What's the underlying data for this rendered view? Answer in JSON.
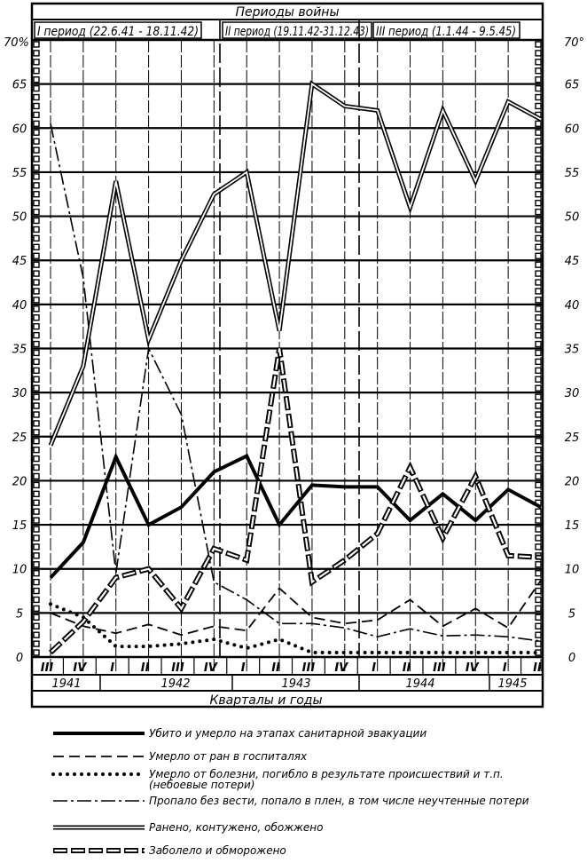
{
  "chart_data": {
    "type": "line",
    "title": "Периоды войны",
    "periods": [
      "I период (22.6.41 - 18.11.42)",
      "II период (19.11.42-31.12.43)",
      "III период (1.1.44 - 9.5.45)"
    ],
    "xlabel": "Кварталы и годы",
    "categories": [
      "III",
      "IV",
      "I",
      "II",
      "III",
      "IV",
      "I",
      "II",
      "III",
      "IV",
      "I",
      "II",
      "III",
      "IV",
      "I",
      "II"
    ],
    "years": [
      "1941",
      "1942",
      "1943",
      "1944",
      "1945"
    ],
    "y_ticks": [
      "0",
      "5",
      "10",
      "15",
      "20",
      "25",
      "30",
      "35",
      "40",
      "45",
      "50",
      "55",
      "60",
      "65",
      "70"
    ],
    "y_top_left_label": "70%",
    "y_top_right_label": "70°",
    "ylim": [
      0,
      70
    ],
    "grid": true,
    "legend_position": "bottom",
    "series": [
      {
        "name": "Убито и умерло на этапах санитарной эвакуации",
        "style": "solid-thick",
        "values": [
          9,
          13,
          22.7,
          15,
          17,
          21,
          22.8,
          15,
          19.5,
          19.3,
          19.3,
          15.5,
          18.5,
          15.5,
          19,
          17
        ]
      },
      {
        "name": "Умерло от ран в госпиталях",
        "style": "dashed",
        "values": [
          5,
          3.5,
          2.7,
          3.7,
          2.5,
          3.5,
          3,
          7.8,
          4.5,
          3.8,
          4.2,
          6.5,
          3.5,
          5.5,
          3.3,
          8.7
        ]
      },
      {
        "name": "Умерло от болезни, погибло в результате происшествий и т.п. (небоевые потери)",
        "style": "dotted",
        "values": [
          6,
          4.5,
          1.2,
          1.2,
          1.5,
          2,
          1,
          2,
          0.5,
          0.5,
          0.5,
          0.5,
          0.5,
          0.5,
          0.5,
          0.5
        ]
      },
      {
        "name": "Пропало без вести, попало в плен, в том числе неучтенные потери",
        "style": "dash-dot",
        "values": [
          60.5,
          43,
          9.5,
          35,
          27.5,
          8.5,
          6.5,
          3.8,
          3.8,
          3.3,
          2.3,
          3.2,
          2.4,
          2.5,
          2.3,
          1.8
        ]
      },
      {
        "name": "Ранено, контужено, обожжено",
        "style": "double",
        "values": [
          24,
          33,
          54,
          36,
          45,
          52.5,
          55,
          37,
          65,
          62.5,
          62,
          51,
          62,
          54,
          63,
          61
        ]
      },
      {
        "name": "Заболело и обморожено",
        "style": "double-dashed",
        "values": [
          0.5,
          4,
          9,
          10,
          5.5,
          12.3,
          11,
          35,
          8.5,
          11,
          14,
          21.5,
          13.5,
          20.5,
          11.5,
          11.3
        ]
      }
    ]
  }
}
